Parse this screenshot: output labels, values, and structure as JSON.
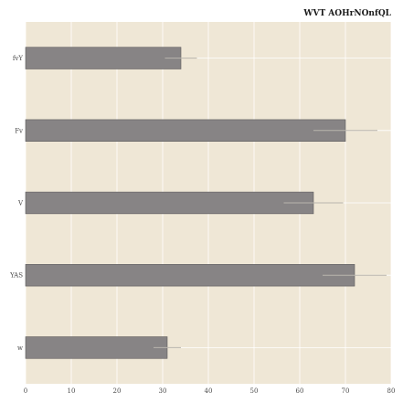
{
  "chart_data": {
    "type": "bar",
    "orientation": "horizontal",
    "title": "WVT AOHrNOnfQL",
    "xlabel": "",
    "ylabel": "",
    "categories": [
      "fvY",
      "Fv",
      "V",
      "YAS",
      "w"
    ],
    "values": [
      34,
      70,
      63,
      72,
      31
    ],
    "errors": [
      3.5,
      7,
      6.5,
      7,
      3
    ],
    "xlim": [
      0,
      80
    ],
    "xticks": [
      0,
      10,
      20,
      30,
      40,
      50,
      60,
      70,
      80
    ],
    "grid": true,
    "legend": "none",
    "colors": {
      "plot_background": "#efe7d6",
      "bar": "#878485",
      "bar_edge": "#5e5c5d",
      "error_bar": "#b9b5ad",
      "grid": "#ffffff"
    }
  }
}
